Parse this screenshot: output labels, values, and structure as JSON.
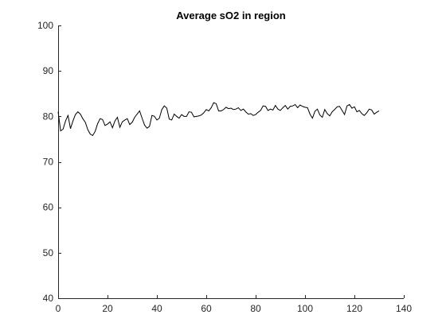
{
  "chart_data": {
    "type": "line",
    "title": "Average sO2 in region",
    "xlabel": "",
    "ylabel": "",
    "xlim": [
      0,
      140
    ],
    "ylim": [
      40,
      100
    ],
    "x_ticks": [
      0,
      20,
      40,
      60,
      80,
      100,
      120,
      140
    ],
    "y_ticks": [
      40,
      50,
      60,
      70,
      80,
      90,
      100
    ],
    "grid": false,
    "legend": "none",
    "series": [
      {
        "color": "#000000",
        "x": [
          0,
          1,
          2,
          3,
          4,
          5,
          6,
          7,
          8,
          9,
          10,
          11,
          12,
          13,
          14,
          15,
          16,
          17,
          18,
          19,
          20,
          21,
          22,
          23,
          24,
          25,
          26,
          27,
          28,
          29,
          30,
          31,
          32,
          33,
          34,
          35,
          36,
          37,
          38,
          39,
          40,
          41,
          42,
          43,
          44,
          45,
          46,
          47,
          48,
          49,
          50,
          51,
          52,
          53,
          54,
          55,
          56,
          57,
          58,
          59,
          60,
          61,
          62,
          63,
          64,
          65,
          66,
          67,
          68,
          69,
          70,
          71,
          72,
          73,
          74,
          75,
          76,
          77,
          78,
          79,
          80,
          81,
          82,
          83,
          84,
          85,
          86,
          87,
          88,
          89,
          90,
          91,
          92,
          93,
          94,
          95,
          96,
          97,
          98,
          99,
          100,
          101,
          102,
          103,
          104,
          105,
          106,
          107,
          108,
          109,
          110,
          111,
          112,
          113,
          114,
          115,
          116,
          117,
          118,
          119,
          120,
          121,
          122,
          123,
          124,
          125,
          126,
          127,
          128,
          129,
          130
        ],
        "y": [
          81.0,
          76.8,
          77.2,
          79.0,
          80.2,
          77.3,
          79.0,
          80.4,
          81.0,
          80.5,
          79.5,
          78.7,
          77.1,
          76.1,
          75.8,
          76.7,
          78.4,
          79.5,
          79.3,
          78.0,
          78.3,
          78.8,
          77.5,
          79.0,
          79.8,
          77.6,
          78.8,
          79.2,
          79.5,
          78.2,
          78.7,
          79.8,
          80.5,
          81.2,
          79.6,
          78.1,
          77.4,
          77.8,
          80.2,
          80.0,
          79.2,
          79.6,
          81.5,
          82.3,
          81.8,
          79.4,
          79.2,
          80.5,
          80.0,
          79.6,
          80.4,
          80.0,
          80.0,
          81.0,
          80.9,
          79.9,
          80.0,
          80.1,
          80.3,
          80.8,
          81.5,
          81.2,
          81.9,
          83.0,
          82.8,
          81.2,
          81.2,
          81.5,
          82.0,
          81.7,
          81.8,
          81.5,
          81.6,
          81.9,
          81.3,
          81.6,
          81.0,
          80.5,
          80.6,
          80.2,
          80.4,
          80.9,
          81.3,
          82.3,
          82.2,
          81.3,
          81.6,
          81.4,
          82.4,
          81.6,
          81.3,
          81.9,
          82.4,
          81.6,
          82.2,
          82.3,
          82.6,
          81.9,
          82.5,
          82.2,
          82.0,
          81.9,
          80.5,
          79.6,
          81.1,
          81.6,
          80.3,
          79.8,
          81.5,
          80.6,
          80.1,
          81.0,
          81.5,
          82.1,
          82.2,
          81.3,
          80.4,
          82.3,
          82.6,
          81.8,
          82.1,
          81.0,
          81.3,
          80.6,
          80.2,
          80.8,
          81.6,
          81.4,
          80.5,
          80.9,
          81.2
        ]
      }
    ]
  }
}
